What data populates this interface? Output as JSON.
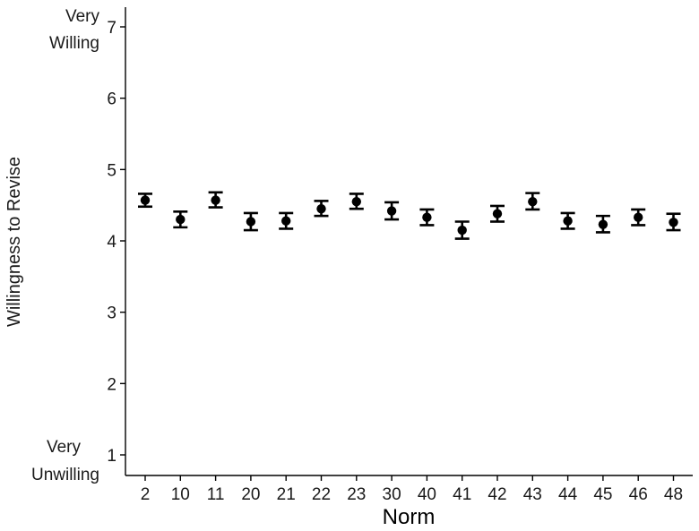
{
  "chart_data": {
    "type": "scatter",
    "xlabel": "Norm",
    "ylabel": "Willingness to Revise",
    "ylim": [
      1,
      7
    ],
    "yticks": [
      1,
      2,
      3,
      4,
      5,
      6,
      7
    ],
    "y_anchor_labels": {
      "top": [
        "Very",
        "Willing"
      ],
      "bottom": [
        "Very",
        "Unwilling"
      ]
    },
    "grid": false,
    "error_bars": true,
    "categories": [
      "2",
      "10",
      "11",
      "20",
      "21",
      "22",
      "23",
      "30",
      "40",
      "41",
      "42",
      "43",
      "44",
      "45",
      "46",
      "48"
    ],
    "values": [
      4.57,
      4.3,
      4.57,
      4.27,
      4.28,
      4.45,
      4.55,
      4.42,
      4.33,
      4.15,
      4.38,
      4.55,
      4.28,
      4.23,
      4.33,
      4.26
    ],
    "error_low": [
      4.48,
      4.19,
      4.47,
      4.15,
      4.17,
      4.35,
      4.45,
      4.3,
      4.22,
      4.03,
      4.27,
      4.44,
      4.17,
      4.12,
      4.22,
      4.15
    ],
    "error_high": [
      4.66,
      4.41,
      4.68,
      4.39,
      4.39,
      4.56,
      4.66,
      4.54,
      4.44,
      4.27,
      4.49,
      4.67,
      4.39,
      4.35,
      4.44,
      4.38
    ],
    "colors": {
      "marker": "#000000",
      "axis": "#000000",
      "text": "#1a1a1a"
    }
  }
}
